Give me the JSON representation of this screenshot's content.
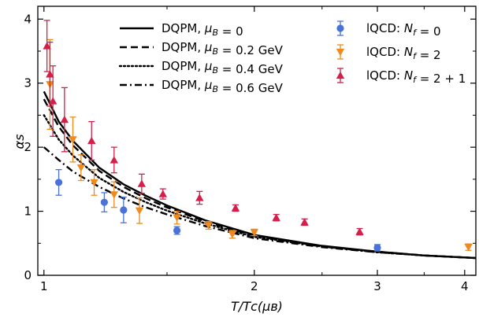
{
  "chart_data": {
    "type": "line",
    "title": "",
    "xlabel": "T/T_c(μ_B)",
    "ylabel": "α_s",
    "xscale": "log",
    "xlim": [
      0.98,
      4.15
    ],
    "ylim": [
      0,
      4.2
    ],
    "xticks": [
      {
        "value": 1,
        "label": "1"
      },
      {
        "value": 2,
        "label": "2"
      },
      {
        "value": 3,
        "label": "3"
      },
      {
        "value": 4,
        "label": "4"
      }
    ],
    "yticks": [
      {
        "value": 0,
        "label": "0"
      },
      {
        "value": 1,
        "label": "1"
      },
      {
        "value": 2,
        "label": "2"
      },
      {
        "value": 3,
        "label": "3"
      },
      {
        "value": 4,
        "label": "4"
      }
    ],
    "series": [
      {
        "name": "DQPM, μ_B = 0",
        "kind": "line",
        "dash": "solid",
        "color": "#000000",
        "x": [
          1.0,
          1.05,
          1.1,
          1.2,
          1.3,
          1.4,
          1.5,
          1.7,
          2.0,
          2.5,
          3.0,
          3.5,
          4.15
        ],
        "y": [
          2.87,
          2.4,
          2.1,
          1.68,
          1.42,
          1.24,
          1.09,
          0.86,
          0.63,
          0.46,
          0.37,
          0.31,
          0.27
        ]
      },
      {
        "name": "DQPM, μ_B = 0.2 GeV",
        "kind": "line",
        "dash": "dashed",
        "color": "#000000",
        "x": [
          1.0,
          1.05,
          1.1,
          1.2,
          1.3,
          1.4,
          1.5,
          1.7,
          2.0,
          2.5,
          3.0,
          3.5,
          4.15
        ],
        "y": [
          2.75,
          2.32,
          2.03,
          1.63,
          1.38,
          1.2,
          1.06,
          0.84,
          0.62,
          0.45,
          0.37,
          0.31,
          0.27
        ]
      },
      {
        "name": "DQPM, μ_B = 0.4 GeV",
        "kind": "line",
        "dash": "dotted",
        "color": "#000000",
        "x": [
          1.0,
          1.05,
          1.1,
          1.2,
          1.3,
          1.4,
          1.5,
          1.7,
          2.0,
          2.5,
          3.0,
          3.5,
          4.15
        ],
        "y": [
          2.5,
          2.12,
          1.87,
          1.52,
          1.3,
          1.14,
          1.01,
          0.81,
          0.6,
          0.45,
          0.36,
          0.31,
          0.27
        ]
      },
      {
        "name": "DQPM, μ_B = 0.6 GeV",
        "kind": "line",
        "dash": "dashdot",
        "color": "#000000",
        "x": [
          1.0,
          1.05,
          1.1,
          1.2,
          1.3,
          1.4,
          1.5,
          1.7,
          2.0,
          2.5,
          3.0,
          3.5,
          4.15
        ],
        "y": [
          2.0,
          1.8,
          1.62,
          1.38,
          1.2,
          1.06,
          0.95,
          0.77,
          0.58,
          0.44,
          0.36,
          0.31,
          0.27
        ]
      },
      {
        "name": "lQCD: N_f = 0",
        "kind": "points",
        "marker": "circle",
        "color": "#4a72d9",
        "x": [
          1.05,
          1.22,
          1.3,
          1.55,
          3.0
        ],
        "y": [
          1.45,
          1.14,
          1.02,
          0.7,
          0.43
        ],
        "err": [
          0.2,
          0.15,
          0.2,
          0.06,
          0.05
        ]
      },
      {
        "name": "lQCD: N_f = 2",
        "kind": "points",
        "marker": "triangle-down",
        "color": "#f08a1c",
        "x": [
          1.02,
          1.1,
          1.13,
          1.18,
          1.26,
          1.37,
          1.55,
          1.72,
          1.86,
          2.0,
          4.05
        ],
        "y": [
          2.98,
          2.12,
          1.68,
          1.45,
          1.26,
          1.01,
          0.9,
          0.78,
          0.64,
          0.67,
          0.44
        ],
        "err": [
          0.7,
          0.35,
          0.2,
          0.2,
          0.2,
          0.2,
          0.1,
          0.06,
          0.06,
          0.05,
          0.05
        ]
      },
      {
        "name": "lQCD: N_f = 2 + 1",
        "kind": "points",
        "marker": "triangle-up",
        "color": "#d41f4a",
        "x": [
          1.01,
          1.02,
          1.03,
          1.07,
          1.17,
          1.26,
          1.38,
          1.48,
          1.67,
          1.88,
          2.15,
          2.36,
          2.83
        ],
        "y": [
          3.58,
          3.14,
          2.72,
          2.43,
          2.1,
          1.8,
          1.43,
          1.27,
          1.21,
          1.05,
          0.9,
          0.83,
          0.68
        ],
        "err": [
          0.4,
          0.5,
          0.55,
          0.5,
          0.3,
          0.2,
          0.15,
          0.08,
          0.1,
          0.05,
          0.05,
          0.05,
          0.05
        ]
      }
    ],
    "legend": {
      "lines": "top-center",
      "points": "top-right"
    }
  }
}
